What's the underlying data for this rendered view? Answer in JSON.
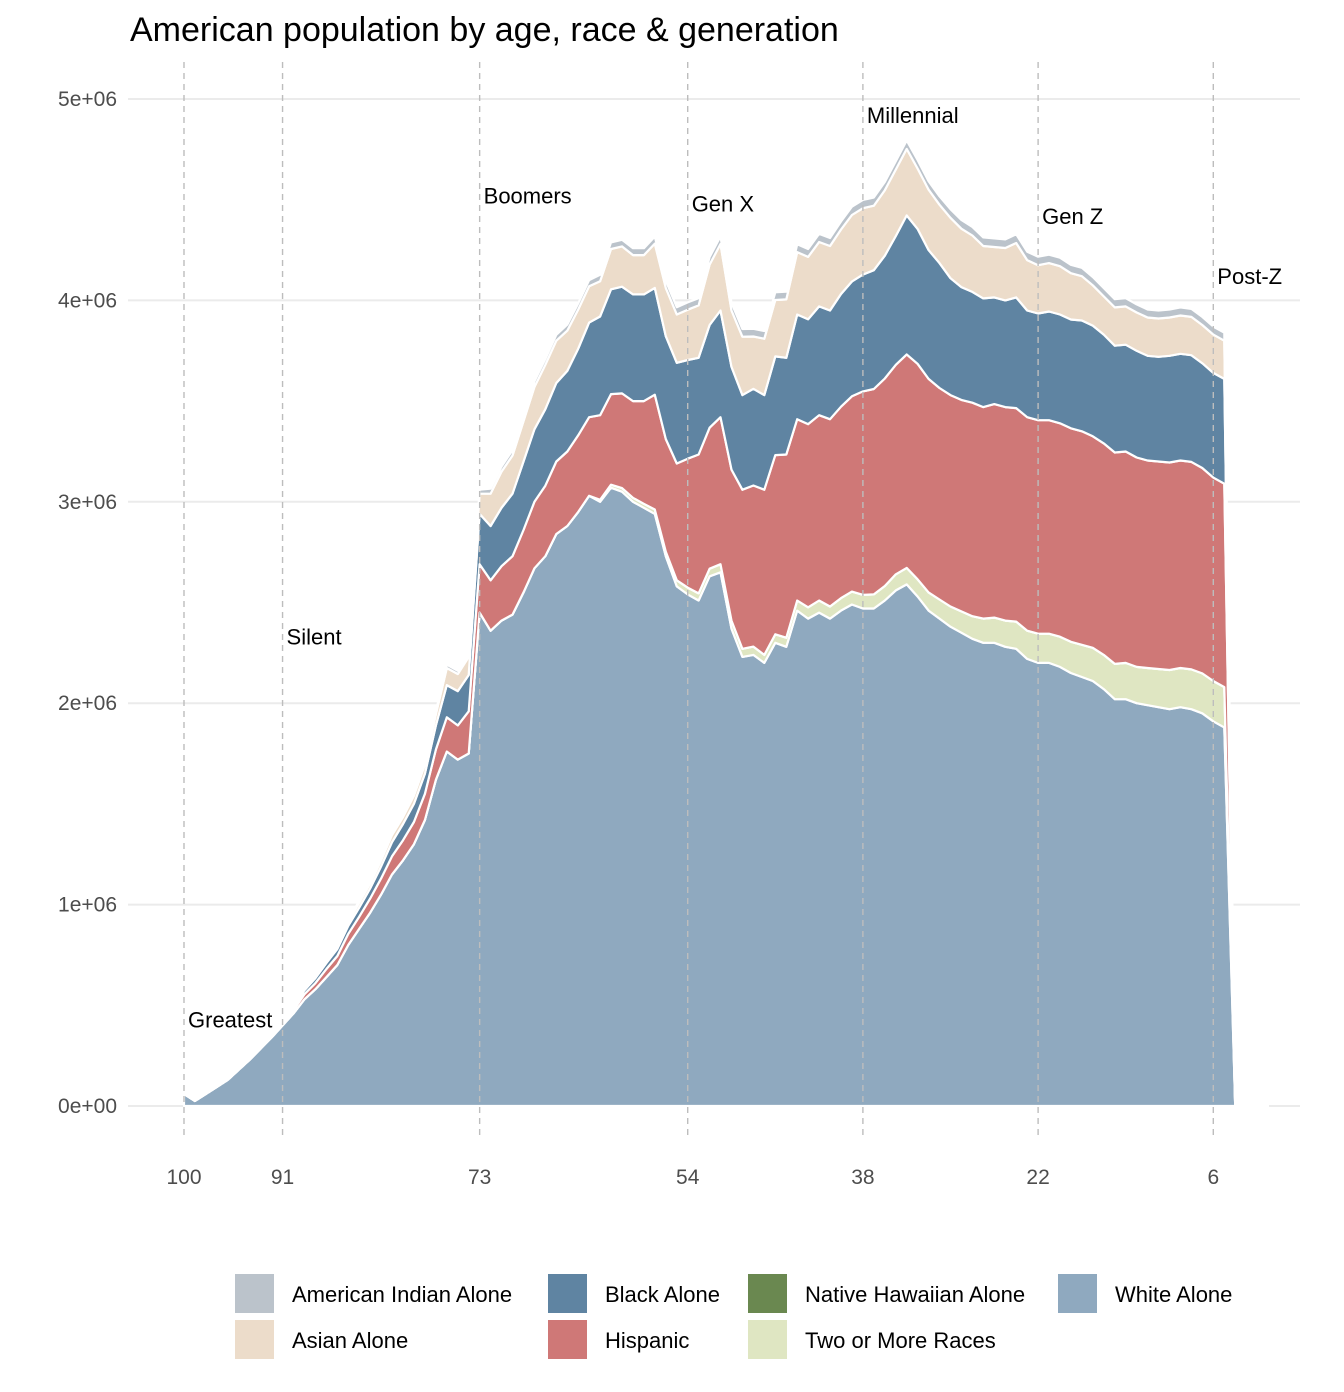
{
  "chart_data": {
    "type": "area",
    "stacked": true,
    "title": "American population by age, race & generation",
    "xlabel": "",
    "ylabel": "",
    "x_reversed": true,
    "x_range": [
      100,
      1
    ],
    "ylim": [
      0,
      5000000
    ],
    "y_ticks": [
      0,
      1000000,
      2000000,
      3000000,
      4000000,
      5000000
    ],
    "y_tick_labels": [
      "0e+00",
      "1e+06",
      "2e+06",
      "3e+06",
      "4e+06",
      "5e+06"
    ],
    "x_ticks": [
      100,
      91,
      73,
      54,
      38,
      22,
      6
    ],
    "x_tick_labels": [
      "100",
      "91",
      "73",
      "54",
      "38",
      "22",
      "6"
    ],
    "grid": true,
    "legend_position": "bottom",
    "generations": [
      {
        "label": "Greatest",
        "start_age": 100,
        "label_y": 430000
      },
      {
        "label": "Silent",
        "start_age": 91,
        "label_y": 2330000
      },
      {
        "label": "Boomers",
        "start_age": 73,
        "label_y": 4520000
      },
      {
        "label": "Gen X",
        "start_age": 54,
        "label_y": 4480000
      },
      {
        "label": "Millennial",
        "start_age": 38,
        "label_y": 4920000
      },
      {
        "label": "Gen Z",
        "start_age": 22,
        "label_y": 4420000
      },
      {
        "label": "Post-Z",
        "start_age": 6,
        "label_y": 4120000
      }
    ],
    "ages": [
      100,
      99,
      98,
      97,
      96,
      95,
      94,
      93,
      92,
      91,
      90,
      89,
      88,
      87,
      86,
      85,
      84,
      83,
      82,
      81,
      80,
      79,
      78,
      77,
      76,
      75,
      74,
      73,
      72,
      71,
      70,
      69,
      68,
      67,
      66,
      65,
      64,
      63,
      62,
      61,
      60,
      59,
      58,
      57,
      56,
      55,
      54,
      53,
      52,
      51,
      50,
      49,
      48,
      47,
      46,
      45,
      44,
      43,
      42,
      41,
      40,
      39,
      38,
      37,
      36,
      35,
      34,
      33,
      32,
      31,
      30,
      29,
      28,
      27,
      26,
      25,
      24,
      23,
      22,
      21,
      20,
      19,
      18,
      17,
      16,
      15,
      14,
      13,
      12,
      11,
      10,
      9,
      8,
      7,
      6,
      5,
      4,
      3,
      2,
      1
    ],
    "series": [
      {
        "name": "White Alone",
        "color": "#8fa9bf",
        "values": [
          60000,
          25000,
          60000,
          95000,
          130000,
          180000,
          230000,
          285000,
          340000,
          400000,
          460000,
          530000,
          580000,
          640000,
          700000,
          800000,
          880000,
          960000,
          1050000,
          1150000,
          1220000,
          1300000,
          1420000,
          1620000,
          1760000,
          1720000,
          1750000,
          2450000,
          2360000,
          2410000,
          2440000,
          2550000,
          2670000,
          2730000,
          2840000,
          2880000,
          2950000,
          3030000,
          3000000,
          3070000,
          3050000,
          3000000,
          2970000,
          2940000,
          2730000,
          2580000,
          2540000,
          2510000,
          2630000,
          2650000,
          2370000,
          2230000,
          2240000,
          2200000,
          2300000,
          2280000,
          2460000,
          2420000,
          2450000,
          2420000,
          2460000,
          2490000,
          2470000,
          2470000,
          2510000,
          2560000,
          2590000,
          2530000,
          2460000,
          2420000,
          2380000,
          2350000,
          2320000,
          2300000,
          2300000,
          2280000,
          2270000,
          2220000,
          2200000,
          2200000,
          2180000,
          2150000,
          2130000,
          2110000,
          2070000,
          2020000,
          2020000,
          2000000,
          1990000,
          1980000,
          1970000,
          1980000,
          1970000,
          1950000,
          1910000,
          1880000
        ]
      },
      {
        "name": "Two or More Races",
        "color": "#dfe6c2",
        "values": [
          0,
          0,
          0,
          0,
          0,
          0,
          0,
          0,
          0,
          0,
          0,
          0,
          0,
          0,
          0,
          0,
          0,
          0,
          0,
          0,
          0,
          0,
          0,
          0,
          0,
          0,
          0,
          0,
          0,
          0,
          0,
          0,
          0,
          0,
          0,
          0,
          0,
          0,
          10000,
          15000,
          18000,
          20000,
          20000,
          22000,
          22000,
          30000,
          34000,
          35000,
          38000,
          40000,
          40000,
          40000,
          41000,
          40000,
          42000,
          45000,
          50000,
          56000,
          60000,
          60000,
          62000,
          64000,
          68000,
          70000,
          72000,
          80000,
          82000,
          85000,
          90000,
          95000,
          100000,
          106000,
          112000,
          120000,
          125000,
          130000,
          135000,
          140000,
          145000,
          145000,
          150000,
          155000,
          160000,
          165000,
          170000,
          175000,
          180000,
          180000,
          185000,
          190000,
          195000,
          195000,
          198000,
          198000,
          200000,
          200000
        ]
      },
      {
        "name": "Native Hawaiian Alone",
        "color": "#6a8850",
        "values": [
          0,
          0,
          0,
          0,
          0,
          0,
          0,
          0,
          0,
          0,
          0,
          0,
          0,
          0,
          0,
          0,
          0,
          0,
          0,
          0,
          0,
          0,
          0,
          0,
          0,
          0,
          0,
          0,
          0,
          0,
          0,
          0,
          0,
          0,
          0,
          0,
          0,
          0,
          0,
          0,
          0,
          0,
          0,
          0,
          0,
          0,
          0,
          0,
          0,
          0,
          0,
          0,
          0,
          0,
          0,
          0,
          0,
          0,
          0,
          0,
          0,
          0,
          0,
          0,
          0,
          0,
          0,
          0,
          0,
          0,
          0,
          0,
          0,
          0,
          0,
          0,
          0,
          0,
          0,
          0,
          0,
          0,
          0,
          0,
          0,
          0,
          0,
          0,
          0,
          0,
          0,
          0,
          0,
          0,
          0,
          0,
          0,
          0,
          0,
          0
        ]
      },
      {
        "name": "Hispanic",
        "color": "#cf7877",
        "values": [
          0,
          0,
          0,
          0,
          0,
          0,
          0,
          0,
          2000,
          8000,
          15000,
          25000,
          30000,
          40000,
          45000,
          55000,
          60000,
          70000,
          80000,
          90000,
          100000,
          110000,
          130000,
          150000,
          170000,
          170000,
          210000,
          240000,
          250000,
          270000,
          290000,
          310000,
          330000,
          350000,
          360000,
          370000,
          380000,
          390000,
          420000,
          450000,
          470000,
          480000,
          510000,
          570000,
          560000,
          580000,
          640000,
          690000,
          700000,
          730000,
          750000,
          790000,
          800000,
          820000,
          890000,
          910000,
          900000,
          910000,
          920000,
          930000,
          950000,
          970000,
          1010000,
          1020000,
          1030000,
          1040000,
          1060000,
          1070000,
          1060000,
          1050000,
          1050000,
          1050000,
          1060000,
          1050000,
          1060000,
          1060000,
          1060000,
          1060000,
          1060000,
          1060000,
          1060000,
          1060000,
          1060000,
          1050000,
          1050000,
          1050000,
          1050000,
          1040000,
          1030000,
          1030000,
          1030000,
          1030000,
          1030000,
          1020000,
          1010000,
          1010000
        ]
      },
      {
        "name": "Black Alone",
        "color": "#5f84a2",
        "values": [
          0,
          0,
          0,
          0,
          0,
          0,
          0,
          0,
          6000,
          12000,
          15000,
          20000,
          25000,
          30000,
          35000,
          40000,
          45000,
          50000,
          60000,
          70000,
          80000,
          90000,
          100000,
          120000,
          160000,
          170000,
          180000,
          250000,
          270000,
          290000,
          310000,
          340000,
          360000,
          380000,
          390000,
          400000,
          430000,
          470000,
          490000,
          520000,
          530000,
          530000,
          530000,
          530000,
          510000,
          500000,
          490000,
          480000,
          510000,
          530000,
          510000,
          470000,
          480000,
          470000,
          490000,
          480000,
          520000,
          520000,
          540000,
          540000,
          560000,
          570000,
          580000,
          590000,
          610000,
          640000,
          690000,
          670000,
          640000,
          620000,
          580000,
          560000,
          550000,
          540000,
          530000,
          530000,
          550000,
          530000,
          530000,
          540000,
          540000,
          540000,
          550000,
          550000,
          540000,
          530000,
          530000,
          530000,
          520000,
          520000,
          530000,
          530000,
          530000,
          520000,
          520000,
          520000
        ]
      },
      {
        "name": "Asian Alone",
        "color": "#ecdcca",
        "values": [
          0,
          0,
          0,
          0,
          0,
          0,
          0,
          0,
          2000,
          5000,
          8000,
          10000,
          10000,
          15000,
          15000,
          20000,
          25000,
          25000,
          30000,
          35000,
          35000,
          40000,
          45000,
          55000,
          85000,
          85000,
          90000,
          100000,
          160000,
          180000,
          190000,
          200000,
          210000,
          220000,
          210000,
          200000,
          195000,
          180000,
          175000,
          200000,
          200000,
          195000,
          195000,
          220000,
          240000,
          240000,
          250000,
          260000,
          300000,
          330000,
          280000,
          290000,
          260000,
          280000,
          280000,
          290000,
          310000,
          310000,
          320000,
          320000,
          320000,
          330000,
          330000,
          320000,
          325000,
          330000,
          330000,
          300000,
          300000,
          290000,
          300000,
          290000,
          280000,
          260000,
          250000,
          260000,
          270000,
          250000,
          240000,
          240000,
          240000,
          230000,
          220000,
          200000,
          190000,
          190000,
          190000,
          190000,
          190000,
          190000,
          190000,
          190000,
          190000,
          190000,
          190000,
          190000
        ]
      },
      {
        "name": "American Indian Alone",
        "color": "#bbc3cb",
        "values": [
          0,
          0,
          0,
          0,
          0,
          0,
          0,
          0,
          1000,
          2000,
          3000,
          4000,
          5000,
          6000,
          8000,
          8000,
          9000,
          10000,
          10000,
          12000,
          12000,
          14000,
          15000,
          15000,
          16000,
          16000,
          16000,
          20000,
          25000,
          25000,
          26000,
          27000,
          28000,
          28000,
          29000,
          30000,
          30000,
          31000,
          32000,
          33000,
          33000,
          34000,
          34000,
          35000,
          36000,
          36000,
          36000,
          36000,
          37000,
          38000,
          38000,
          38000,
          38000,
          38000,
          38000,
          38000,
          39000,
          39000,
          40000,
          40000,
          40000,
          41000,
          41000,
          41000,
          41000,
          41000,
          42000,
          42000,
          42000,
          42000,
          43000,
          43000,
          43000,
          43000,
          43000,
          43000,
          43000,
          42000,
          42000,
          42000,
          42000,
          42000,
          42000,
          41000,
          41000,
          41000,
          41000,
          40000,
          40000,
          40000,
          40000,
          40000,
          40000,
          40000,
          40000,
          40000
        ]
      }
    ],
    "legend": {
      "entries": [
        {
          "label": "American Indian Alone",
          "color": "#bbc3cb"
        },
        {
          "label": "Asian Alone",
          "color": "#ecdcca"
        },
        {
          "label": "Black Alone",
          "color": "#5f84a2"
        },
        {
          "label": "Hispanic",
          "color": "#cf7877"
        },
        {
          "label": "Native Hawaiian Alone",
          "color": "#6a8850"
        },
        {
          "label": "Two or More Races",
          "color": "#dfe6c2"
        },
        {
          "label": "White Alone",
          "color": "#8fa9bf"
        }
      ]
    }
  }
}
